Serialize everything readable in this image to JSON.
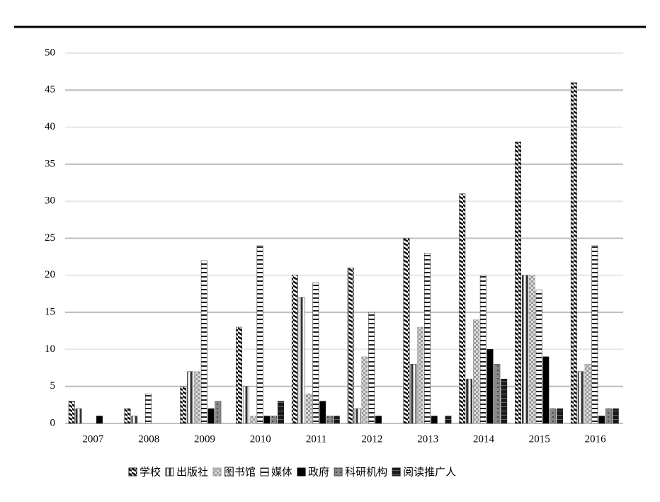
{
  "chart_data": {
    "type": "bar",
    "categories": [
      "2007",
      "2008",
      "2009",
      "2010",
      "2011",
      "2012",
      "2013",
      "2014",
      "2015",
      "2016"
    ],
    "series": [
      {
        "name": "学校",
        "color": "#111111",
        "values": [
          3,
          2,
          5,
          13,
          20,
          21,
          25,
          31,
          38,
          46
        ]
      },
      {
        "name": "出版社",
        "color": "#333333",
        "values": [
          2,
          1,
          7,
          5,
          17,
          2,
          8,
          6,
          20,
          7
        ]
      },
      {
        "name": "图书馆",
        "color": "#999999",
        "values": [
          0,
          0,
          7,
          1,
          4,
          9,
          13,
          14,
          20,
          8
        ]
      },
      {
        "name": "媒体",
        "color": "#222222",
        "values": [
          0,
          4,
          22,
          24,
          19,
          15,
          23,
          20,
          18,
          24
        ]
      },
      {
        "name": "政府",
        "color": "#000000",
        "values": [
          1,
          0,
          2,
          1,
          3,
          1,
          1,
          10,
          9,
          1
        ]
      },
      {
        "name": "科研机构",
        "color": "#444444",
        "values": [
          0,
          0,
          3,
          1,
          1,
          0,
          0,
          8,
          2,
          2
        ]
      },
      {
        "name": "阅读推广人",
        "color": "#1a1a1a",
        "values": [
          0,
          0,
          0,
          3,
          1,
          0,
          1,
          6,
          2,
          2
        ]
      }
    ],
    "ylim": [
      0,
      50
    ],
    "yticks": [
      0,
      5,
      10,
      15,
      20,
      25,
      30,
      35,
      40,
      45,
      50
    ],
    "grid": true,
    "legend": "bottom"
  }
}
